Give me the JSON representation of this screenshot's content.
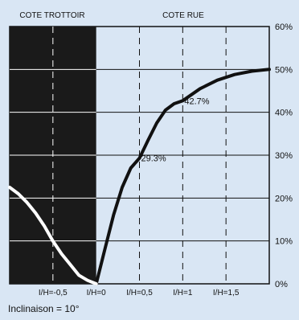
{
  "chart_data": {
    "type": "line",
    "header_left": "COTE TROTTOIR",
    "header_right": "COTE RUE",
    "x_ticks": [
      {
        "value": -0.5,
        "label": "I/H=-0,5"
      },
      {
        "value": 0,
        "label": "I/H=0"
      },
      {
        "value": 0.5,
        "label": "I/H=0,5"
      },
      {
        "value": 1,
        "label": "I/H=1"
      },
      {
        "value": 1.5,
        "label": "I/H=1,5"
      }
    ],
    "y_ticks": [
      {
        "value": 0,
        "label": "0%"
      },
      {
        "value": 10,
        "label": "10%"
      },
      {
        "value": 20,
        "label": "20%"
      },
      {
        "value": 30,
        "label": "30%"
      },
      {
        "value": 40,
        "label": "40%"
      },
      {
        "value": 50,
        "label": "50%"
      },
      {
        "value": 60,
        "label": "60%"
      }
    ],
    "xlim": [
      -1.0,
      2.0
    ],
    "ylim": [
      0,
      60
    ],
    "shaded_region": [
      -1.0,
      0
    ],
    "series": [
      {
        "color": "#111111",
        "points": [
          [
            0,
            0
          ],
          [
            0.1,
            8
          ],
          [
            0.2,
            16
          ],
          [
            0.3,
            22.5
          ],
          [
            0.4,
            27
          ],
          [
            0.5,
            29.3
          ],
          [
            0.6,
            33.5
          ],
          [
            0.7,
            37.5
          ],
          [
            0.8,
            40.5
          ],
          [
            0.9,
            42
          ],
          [
            1.0,
            42.7
          ],
          [
            1.2,
            45.5
          ],
          [
            1.4,
            47.5
          ],
          [
            1.6,
            48.8
          ],
          [
            1.8,
            49.6
          ],
          [
            2.0,
            50
          ]
        ]
      },
      {
        "color": "#ffffff",
        "points": [
          [
            -1.0,
            22.5
          ],
          [
            -0.9,
            21
          ],
          [
            -0.8,
            19
          ],
          [
            -0.7,
            16.5
          ],
          [
            -0.6,
            13.5
          ],
          [
            -0.5,
            10
          ],
          [
            -0.4,
            7
          ],
          [
            -0.3,
            4.5
          ],
          [
            -0.2,
            2
          ],
          [
            -0.1,
            0.8
          ],
          [
            0,
            0
          ]
        ]
      }
    ],
    "annotations": [
      {
        "x": 0.5,
        "y": 29.3,
        "label": "29.3%"
      },
      {
        "x": 1.0,
        "y": 42.7,
        "label": "42.7%"
      }
    ],
    "footnote": "Inclinaison = 10°"
  }
}
